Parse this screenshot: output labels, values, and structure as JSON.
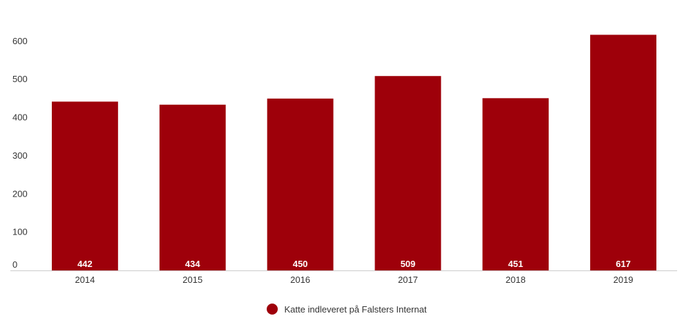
{
  "chart_data": {
    "type": "bar",
    "categories": [
      "2014",
      "2015",
      "2016",
      "2017",
      "2018",
      "2019"
    ],
    "series": [
      {
        "name": "Katte indleveret på Falsters Internat",
        "values": [
          442,
          434,
          450,
          509,
          451,
          617
        ]
      }
    ],
    "y_ticks": [
      "0",
      "100",
      "200",
      "300",
      "400",
      "500",
      "600"
    ],
    "ylim": [
      0,
      617
    ],
    "grid": false,
    "legend_position": "bottom-center",
    "bar_color": "#9e000a",
    "data_labels_position": "inside-base"
  }
}
